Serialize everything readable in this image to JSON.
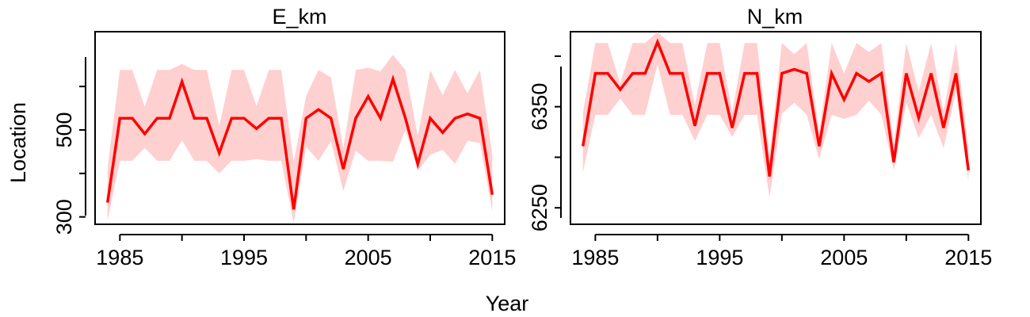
{
  "figure": {
    "xlabel": "Year",
    "ylabel": "Location"
  },
  "chart_data": [
    {
      "type": "line",
      "title": "E_km",
      "xlabel": "Year",
      "ylabel": "Location",
      "xlim": [
        1983,
        2016
      ],
      "ylim": [
        283,
        726
      ],
      "x_ticks": [
        1985,
        1995,
        2005,
        2015
      ],
      "x_minor_ticks": [
        1990,
        2000,
        2010
      ],
      "y_ticks": [
        300,
        500
      ],
      "y_minor_ticks": [
        400,
        600
      ],
      "grid": false,
      "series": [
        {
          "color": "#ff0000",
          "band_color": "#ffd0d0",
          "x": [
            1984,
            1985,
            1986,
            1987,
            1988,
            1989,
            1990,
            1991,
            1992,
            1993,
            1994,
            1995,
            1996,
            1997,
            1998,
            1999,
            2000,
            2001,
            2002,
            2003,
            2004,
            2005,
            2006,
            2007,
            2008,
            2009,
            2010,
            2011,
            2012,
            2013,
            2014,
            2015
          ],
          "y": [
            333,
            527,
            527,
            491,
            527,
            527,
            611,
            527,
            527,
            447,
            527,
            527,
            503,
            527,
            527,
            317,
            527,
            547,
            527,
            410,
            527,
            577,
            527,
            617,
            527,
            422,
            527,
            494,
            527,
            537,
            527,
            351
          ],
          "lower": [
            291,
            429,
            429,
            459,
            429,
            429,
            476,
            429,
            429,
            400,
            429,
            429,
            433,
            429,
            429,
            285,
            461,
            429,
            474,
            359,
            452,
            429,
            429,
            427,
            500,
            406,
            443,
            454,
            422,
            475,
            470,
            313
          ],
          "upper": [
            411,
            638,
            638,
            553,
            638,
            638,
            652,
            638,
            638,
            509,
            638,
            638,
            555,
            638,
            638,
            427,
            578,
            638,
            621,
            458,
            638,
            643,
            635,
            673,
            638,
            485,
            638,
            580,
            638,
            584,
            638,
            444
          ]
        }
      ]
    },
    {
      "type": "line",
      "title": "N_km",
      "xlabel": "Year",
      "ylabel": "",
      "xlim": [
        1983,
        2016
      ],
      "ylim": [
        6233.7,
        6424.2
      ],
      "x_ticks": [
        1985,
        1995,
        2005,
        2015
      ],
      "x_minor_ticks": [
        1990,
        2000,
        2010
      ],
      "y_ticks": [
        6250,
        6350
      ],
      "y_minor_ticks": [
        6300,
        6400
      ],
      "grid": false,
      "series": [
        {
          "color": "#ff0000",
          "band_color": "#ffd0d0",
          "x": [
            1984,
            1985,
            1986,
            1987,
            1988,
            1989,
            1990,
            1991,
            1992,
            1993,
            1994,
            1995,
            1996,
            1997,
            1998,
            1999,
            2000,
            2001,
            2002,
            2003,
            2004,
            2005,
            2006,
            2007,
            2008,
            2009,
            2010,
            2011,
            2012,
            2013,
            2014,
            2015
          ],
          "y": [
            6311,
            6383,
            6383,
            6367,
            6383,
            6383,
            6414,
            6383,
            6383,
            6331,
            6383,
            6383,
            6329,
            6383,
            6383,
            6281,
            6383,
            6387,
            6383,
            6311,
            6383,
            6357,
            6383,
            6375,
            6383,
            6295,
            6383,
            6339,
            6383,
            6329,
            6383,
            6287
          ],
          "lower": [
            6285,
            6342,
            6342,
            6358,
            6342,
            6342,
            6392,
            6342,
            6342,
            6316,
            6342,
            6342,
            6320,
            6342,
            6342,
            6260,
            6343,
            6354,
            6342,
            6298,
            6342,
            6338,
            6342,
            6356,
            6342,
            6287,
            6354,
            6319,
            6342,
            6309,
            6365,
            6276
          ],
          "upper": [
            6344,
            6413,
            6413,
            6373,
            6413,
            6413,
            6424,
            6413,
            6413,
            6352,
            6413,
            6413,
            6345,
            6413,
            6413,
            6302,
            6413,
            6402,
            6413,
            6324,
            6413,
            6383,
            6413,
            6404,
            6413,
            6313,
            6413,
            6365,
            6413,
            6345,
            6413,
            6309
          ]
        }
      ]
    }
  ]
}
